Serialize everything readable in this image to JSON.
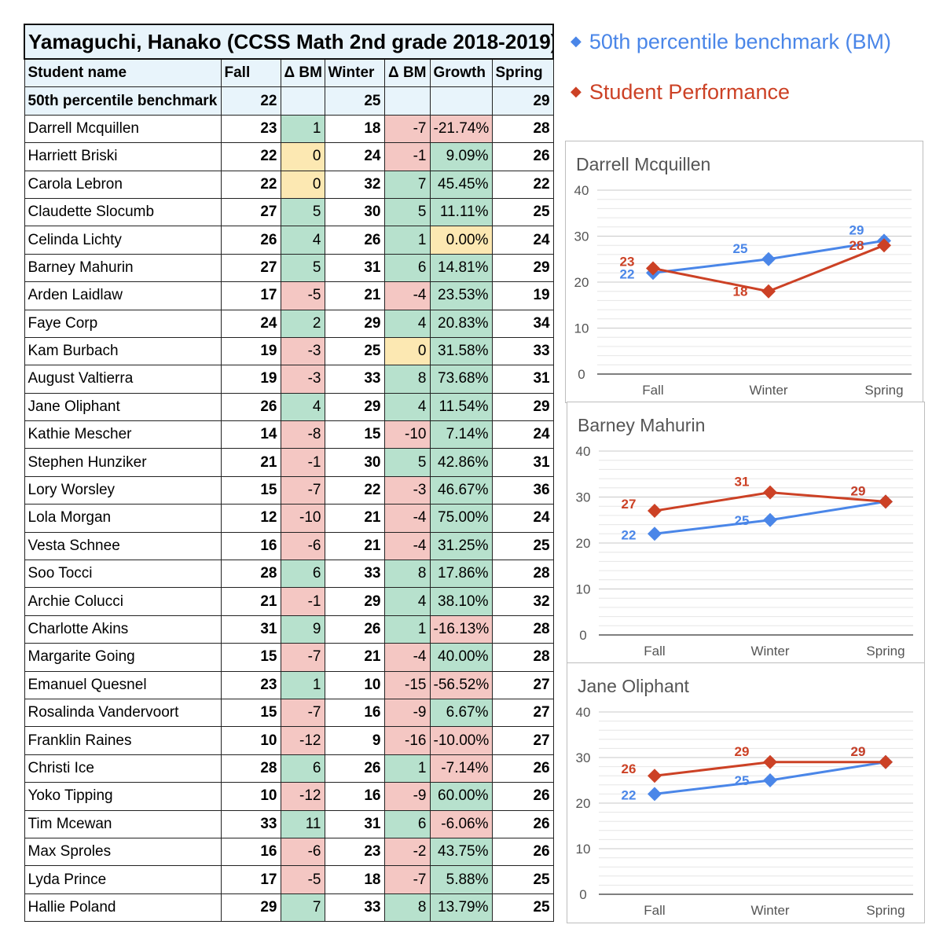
{
  "table": {
    "title": "Yamaguchi, Hanako (CCSS Math 2nd grade 2018-2019)",
    "headers": [
      "Student name",
      "Fall",
      "Δ BM",
      "Winter",
      "Δ BM",
      "Growth",
      "Spring"
    ],
    "benchmark_row": {
      "name": "50th percentile benchmark",
      "fall": "22",
      "d1": "",
      "winter": "25",
      "d2": "",
      "growth": "",
      "spring": "29"
    },
    "rows": [
      {
        "name": "Darrell Mcquillen",
        "fall": "23",
        "d1": "1",
        "winter": "18",
        "d2": "-7",
        "growth": "-21.74%",
        "spring": "28"
      },
      {
        "name": "Harriett Briski",
        "fall": "22",
        "d1": "0",
        "winter": "24",
        "d2": "-1",
        "growth": "9.09%",
        "spring": "26"
      },
      {
        "name": "Carola Lebron",
        "fall": "22",
        "d1": "0",
        "winter": "32",
        "d2": "7",
        "growth": "45.45%",
        "spring": "22"
      },
      {
        "name": "Claudette Slocumb",
        "fall": "27",
        "d1": "5",
        "winter": "30",
        "d2": "5",
        "growth": "11.11%",
        "spring": "25"
      },
      {
        "name": "Celinda Lichty",
        "fall": "26",
        "d1": "4",
        "winter": "26",
        "d2": "1",
        "growth": "0.00%",
        "spring": "24"
      },
      {
        "name": "Barney Mahurin",
        "fall": "27",
        "d1": "5",
        "winter": "31",
        "d2": "6",
        "growth": "14.81%",
        "spring": "29"
      },
      {
        "name": "Arden Laidlaw",
        "fall": "17",
        "d1": "-5",
        "winter": "21",
        "d2": "-4",
        "growth": "23.53%",
        "spring": "19"
      },
      {
        "name": "Faye Corp",
        "fall": "24",
        "d1": "2",
        "winter": "29",
        "d2": "4",
        "growth": "20.83%",
        "spring": "34"
      },
      {
        "name": "Kam Burbach",
        "fall": "19",
        "d1": "-3",
        "winter": "25",
        "d2": "0",
        "growth": "31.58%",
        "spring": "33"
      },
      {
        "name": "August Valtierra",
        "fall": "19",
        "d1": "-3",
        "winter": "33",
        "d2": "8",
        "growth": "73.68%",
        "spring": "31"
      },
      {
        "name": "Jane Oliphant",
        "fall": "26",
        "d1": "4",
        "winter": "29",
        "d2": "4",
        "growth": "11.54%",
        "spring": "29"
      },
      {
        "name": "Kathie Mescher",
        "fall": "14",
        "d1": "-8",
        "winter": "15",
        "d2": "-10",
        "growth": "7.14%",
        "spring": "24"
      },
      {
        "name": "Stephen Hunziker",
        "fall": "21",
        "d1": "-1",
        "winter": "30",
        "d2": "5",
        "growth": "42.86%",
        "spring": "31"
      },
      {
        "name": "Lory Worsley",
        "fall": "15",
        "d1": "-7",
        "winter": "22",
        "d2": "-3",
        "growth": "46.67%",
        "spring": "36"
      },
      {
        "name": "Lola Morgan",
        "fall": "12",
        "d1": "-10",
        "winter": "21",
        "d2": "-4",
        "growth": "75.00%",
        "spring": "24"
      },
      {
        "name": "Vesta Schnee",
        "fall": "16",
        "d1": "-6",
        "winter": "21",
        "d2": "-4",
        "growth": "31.25%",
        "spring": "25"
      },
      {
        "name": "Soo Tocci",
        "fall": "28",
        "d1": "6",
        "winter": "33",
        "d2": "8",
        "growth": "17.86%",
        "spring": "28"
      },
      {
        "name": "Archie Colucci",
        "fall": "21",
        "d1": "-1",
        "winter": "29",
        "d2": "4",
        "growth": "38.10%",
        "spring": "32"
      },
      {
        "name": "Charlotte Akins",
        "fall": "31",
        "d1": "9",
        "winter": "26",
        "d2": "1",
        "growth": "-16.13%",
        "spring": "28"
      },
      {
        "name": "Margarite Going",
        "fall": "15",
        "d1": "-7",
        "winter": "21",
        "d2": "-4",
        "growth": "40.00%",
        "spring": "28"
      },
      {
        "name": "Emanuel Quesnel",
        "fall": "23",
        "d1": "1",
        "winter": "10",
        "d2": "-15",
        "growth": "-56.52%",
        "spring": "27"
      },
      {
        "name": "Rosalinda Vandervoort",
        "fall": "15",
        "d1": "-7",
        "winter": "16",
        "d2": "-9",
        "growth": "6.67%",
        "spring": "27"
      },
      {
        "name": "Franklin Raines",
        "fall": "10",
        "d1": "-12",
        "winter": "9",
        "d2": "-16",
        "growth": "-10.00%",
        "spring": "27"
      },
      {
        "name": "Christi Ice",
        "fall": "28",
        "d1": "6",
        "winter": "26",
        "d2": "1",
        "growth": "-7.14%",
        "spring": "26"
      },
      {
        "name": "Yoko Tipping",
        "fall": "10",
        "d1": "-12",
        "winter": "16",
        "d2": "-9",
        "growth": "60.00%",
        "spring": "26"
      },
      {
        "name": "Tim Mcewan",
        "fall": "33",
        "d1": "11",
        "winter": "31",
        "d2": "6",
        "growth": "-6.06%",
        "spring": "26"
      },
      {
        "name": "Max Sproles",
        "fall": "16",
        "d1": "-6",
        "winter": "23",
        "d2": "-2",
        "growth": "43.75%",
        "spring": "26"
      },
      {
        "name": "Lyda Prince",
        "fall": "17",
        "d1": "-5",
        "winter": "18",
        "d2": "-7",
        "growth": "5.88%",
        "spring": "25"
      },
      {
        "name": "Hallie Poland",
        "fall": "29",
        "d1": "7",
        "winter": "33",
        "d2": "8",
        "growth": "13.79%",
        "spring": "25"
      }
    ]
  },
  "legend": [
    {
      "label": "50th percentile benchmark (BM)",
      "color": "#4a86e8"
    },
    {
      "label": "Student Performance",
      "color": "#cc4125"
    }
  ],
  "colors": {
    "positive": "#b7e1cd",
    "negative": "#f4c7c3",
    "neutral": "#fce8b2",
    "benchmark": "#4a86e8",
    "student": "#cc4125"
  },
  "chart_data": [
    {
      "type": "line",
      "title": "Darrell Mcquillen",
      "categories": [
        "Fall",
        "Winter",
        "Spring"
      ],
      "ylim": [
        0,
        40
      ],
      "yticks": [
        0,
        10,
        20,
        30,
        40
      ],
      "series": [
        {
          "name": "50th percentile benchmark (BM)",
          "values": [
            22,
            25,
            29
          ],
          "labels": [
            "22",
            "25",
            "29"
          ]
        },
        {
          "name": "Student Performance",
          "values": [
            23,
            18,
            28
          ],
          "labels": [
            "23",
            "18",
            "28"
          ]
        }
      ]
    },
    {
      "type": "line",
      "title": "Barney Mahurin",
      "categories": [
        "Fall",
        "Winter",
        "Spring"
      ],
      "ylim": [
        0,
        40
      ],
      "yticks": [
        0,
        10,
        20,
        30,
        40
      ],
      "series": [
        {
          "name": "50th percentile benchmark (BM)",
          "values": [
            22,
            25,
            29
          ],
          "labels": [
            "22",
            "25",
            "29"
          ]
        },
        {
          "name": "Student Performance",
          "values": [
            27,
            31,
            29
          ],
          "labels": [
            "27",
            "31",
            "29"
          ]
        }
      ]
    },
    {
      "type": "line",
      "title": "Jane Oliphant",
      "categories": [
        "Fall",
        "Winter",
        "Spring"
      ],
      "ylim": [
        0,
        40
      ],
      "yticks": [
        0,
        10,
        20,
        30,
        40
      ],
      "series": [
        {
          "name": "50th percentile benchmark (BM)",
          "values": [
            22,
            25,
            29
          ],
          "labels": [
            "22",
            "25",
            "29"
          ]
        },
        {
          "name": "Student Performance",
          "values": [
            26,
            29,
            29
          ],
          "labels": [
            "26",
            "29",
            "29"
          ]
        }
      ]
    }
  ]
}
